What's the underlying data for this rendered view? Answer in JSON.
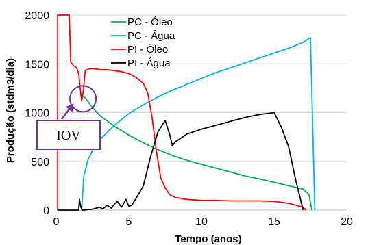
{
  "chart_data": {
    "type": "line",
    "title": "",
    "xlabel": "Tempo (anos)",
    "ylabel": "Produção (stdm3/dia)",
    "xlim": [
      0,
      20
    ],
    "ylim": [
      0,
      2000
    ],
    "xticks": [
      0,
      5,
      10,
      15,
      20
    ],
    "yticks": [
      0,
      500,
      1000,
      1500,
      2000
    ],
    "grid": "horizontal",
    "legend_position": "top-center",
    "series": [
      {
        "name": "PC - Óleo",
        "color": "#00b050",
        "x": [
          1.75,
          2.0,
          2.5,
          3.0,
          4.0,
          5.0,
          6.0,
          7.0,
          8.0,
          9.0,
          10.0,
          11.0,
          12.0,
          13.0,
          14.0,
          15.0,
          16.0,
          17.0,
          17.4,
          17.6
        ],
        "y": [
          1180,
          1150,
          1050,
          970,
          860,
          770,
          690,
          620,
          560,
          510,
          470,
          430,
          390,
          350,
          320,
          285,
          250,
          215,
          160,
          0
        ]
      },
      {
        "name": "PC - Água",
        "color": "#00b0f0",
        "x": [
          1.75,
          1.9,
          2.2,
          2.5,
          3.0,
          4.0,
          5.0,
          6.0,
          7.0,
          8.0,
          9.0,
          10.0,
          11.0,
          12.0,
          13.0,
          14.0,
          15.0,
          16.0,
          17.0,
          17.5,
          17.8
        ],
        "y": [
          0,
          350,
          520,
          610,
          720,
          870,
          990,
          1080,
          1160,
          1230,
          1290,
          1350,
          1410,
          1460,
          1510,
          1560,
          1610,
          1660,
          1720,
          1770,
          0
        ]
      },
      {
        "name": "PI - Óleo",
        "color": "#ff0000",
        "x": [
          0.1,
          0.1,
          0.4,
          0.9,
          1.0,
          1.2,
          1.4,
          1.55,
          1.65,
          1.75,
          1.85,
          2.0,
          2.3,
          2.6,
          3.0,
          3.5,
          4.0,
          4.5,
          5.0,
          5.5,
          6.0,
          6.3,
          6.6,
          6.9,
          7.2,
          7.5,
          7.8,
          8.2,
          9.0,
          10.0,
          11.0,
          12.0,
          13.0,
          14.0,
          15.0,
          16.0,
          17.0,
          17.2
        ],
        "y": [
          0,
          2000,
          2000,
          2000,
          1520,
          1480,
          1460,
          1400,
          1250,
          1120,
          1200,
          1430,
          1450,
          1450,
          1440,
          1440,
          1430,
          1420,
          1400,
          1360,
          1300,
          1200,
          950,
          600,
          330,
          230,
          160,
          130,
          110,
          100,
          100,
          95,
          95,
          95,
          90,
          70,
          30,
          0
        ]
      },
      {
        "name": "PI - Água",
        "color": "#000000",
        "x": [
          0.1,
          1.55,
          1.6,
          1.7,
          1.8,
          1.9,
          2.5,
          3.0,
          3.2,
          3.5,
          3.8,
          4.0,
          4.2,
          4.5,
          4.8,
          5.0,
          5.2,
          5.5,
          6.0,
          6.5,
          7.0,
          7.5,
          7.8,
          8.0,
          8.2,
          8.5,
          9.0,
          10.0,
          11.0,
          12.0,
          13.0,
          14.0,
          15.0,
          15.5,
          16.0,
          16.5,
          17.0
        ],
        "y": [
          0,
          0,
          110,
          30,
          0,
          0,
          10,
          30,
          10,
          50,
          20,
          60,
          90,
          30,
          110,
          40,
          50,
          120,
          250,
          550,
          800,
          920,
          780,
          660,
          700,
          730,
          780,
          830,
          870,
          910,
          950,
          980,
          1000,
          850,
          650,
          300,
          0
        ]
      }
    ],
    "annotations": [
      {
        "text": "IOV",
        "points_to": {
          "x": 1.75,
          "y": 1120
        }
      }
    ]
  },
  "colors": {
    "grid": "#d9d9d9",
    "axis": "#000000",
    "callout_border": "#7030a0",
    "callout_arrow": "#7030a0"
  }
}
